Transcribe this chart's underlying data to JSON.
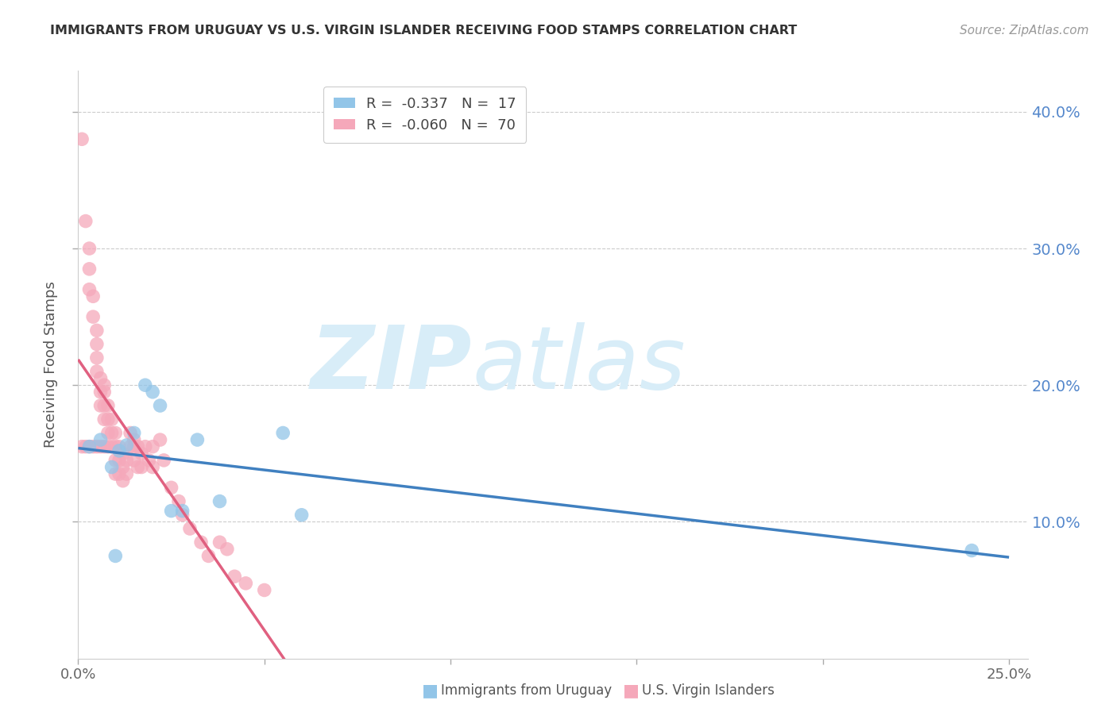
{
  "title": "IMMIGRANTS FROM URUGUAY VS U.S. VIRGIN ISLANDER RECEIVING FOOD STAMPS CORRELATION CHART",
  "source": "Source: ZipAtlas.com",
  "ylabel": "Receiving Food Stamps",
  "xlabel_blue": "Immigrants from Uruguay",
  "xlabel_pink": "U.S. Virgin Islanders",
  "xlim": [
    0.0,
    0.25
  ],
  "ylim": [
    0.0,
    0.42
  ],
  "right_ytick_vals": [
    0.1,
    0.2,
    0.3,
    0.4
  ],
  "right_yticklabels": [
    "10.0%",
    "20.0%",
    "30.0%",
    "40.0%"
  ],
  "bottom_xticklabels": [
    "0.0%",
    "",
    "",
    "",
    "",
    "25.0%"
  ],
  "legend_blue_r": "-0.337",
  "legend_blue_n": "17",
  "legend_pink_r": "-0.060",
  "legend_pink_n": "70",
  "blue_color": "#92C5E8",
  "pink_color": "#F5A8BA",
  "blue_line_color": "#4080C0",
  "pink_line_color": "#E06080",
  "pink_dash_color": "#E0A8B8",
  "watermark_text": "ZIP",
  "watermark_text2": "atlas",
  "watermark_color": "#D8EDF8",
  "blue_x": [
    0.003,
    0.006,
    0.009,
    0.01,
    0.011,
    0.013,
    0.015,
    0.018,
    0.02,
    0.022,
    0.025,
    0.028,
    0.032,
    0.038,
    0.055,
    0.06,
    0.24
  ],
  "blue_y": [
    0.155,
    0.16,
    0.14,
    0.075,
    0.152,
    0.156,
    0.165,
    0.2,
    0.195,
    0.185,
    0.108,
    0.108,
    0.16,
    0.115,
    0.165,
    0.105,
    0.079
  ],
  "pink_x": [
    0.001,
    0.001,
    0.002,
    0.002,
    0.003,
    0.003,
    0.003,
    0.003,
    0.004,
    0.004,
    0.004,
    0.005,
    0.005,
    0.005,
    0.005,
    0.005,
    0.006,
    0.006,
    0.006,
    0.006,
    0.007,
    0.007,
    0.007,
    0.007,
    0.007,
    0.008,
    0.008,
    0.008,
    0.008,
    0.009,
    0.009,
    0.009,
    0.01,
    0.01,
    0.01,
    0.01,
    0.011,
    0.011,
    0.011,
    0.012,
    0.012,
    0.012,
    0.013,
    0.013,
    0.014,
    0.014,
    0.015,
    0.015,
    0.015,
    0.016,
    0.016,
    0.017,
    0.017,
    0.018,
    0.019,
    0.02,
    0.02,
    0.022,
    0.023,
    0.025,
    0.027,
    0.028,
    0.03,
    0.033,
    0.035,
    0.038,
    0.04,
    0.042,
    0.045,
    0.05
  ],
  "pink_y": [
    0.38,
    0.155,
    0.32,
    0.155,
    0.3,
    0.285,
    0.27,
    0.155,
    0.265,
    0.25,
    0.155,
    0.24,
    0.23,
    0.22,
    0.21,
    0.155,
    0.205,
    0.195,
    0.185,
    0.155,
    0.2,
    0.195,
    0.185,
    0.175,
    0.155,
    0.185,
    0.175,
    0.165,
    0.155,
    0.175,
    0.165,
    0.155,
    0.165,
    0.155,
    0.145,
    0.135,
    0.155,
    0.145,
    0.135,
    0.15,
    0.14,
    0.13,
    0.145,
    0.135,
    0.165,
    0.155,
    0.16,
    0.155,
    0.145,
    0.155,
    0.14,
    0.15,
    0.14,
    0.155,
    0.145,
    0.155,
    0.14,
    0.16,
    0.145,
    0.125,
    0.115,
    0.105,
    0.095,
    0.085,
    0.075,
    0.085,
    0.08,
    0.06,
    0.055,
    0.05
  ]
}
